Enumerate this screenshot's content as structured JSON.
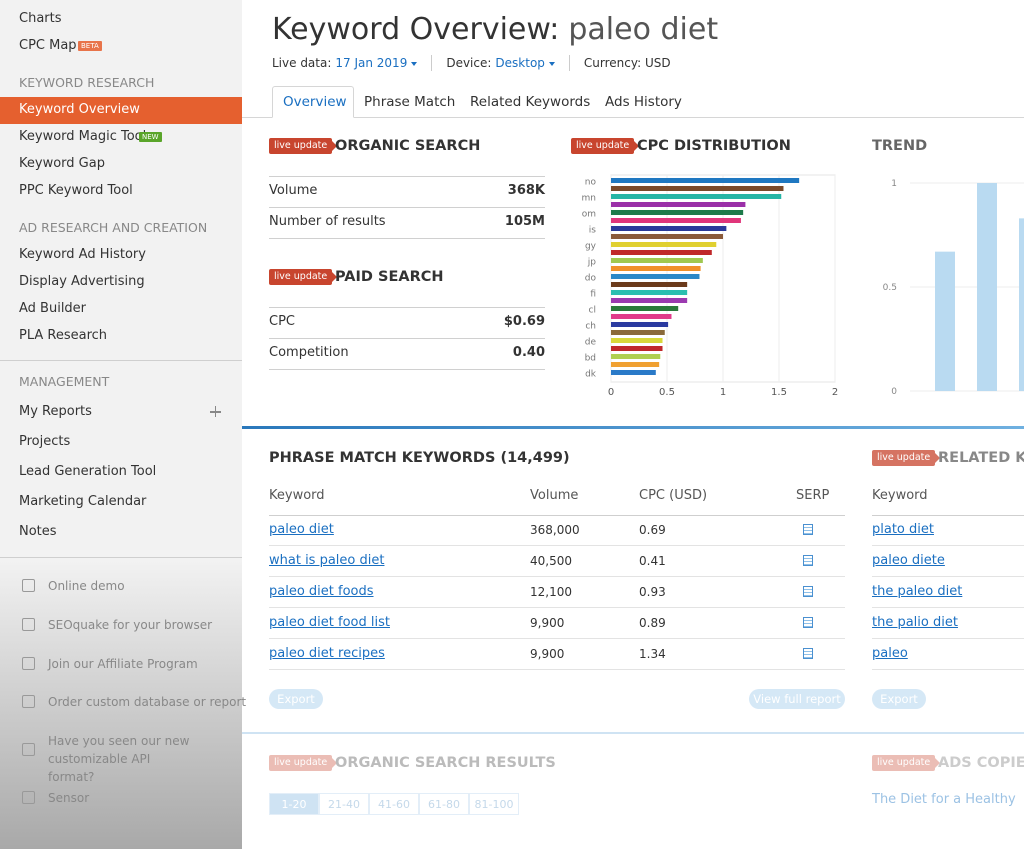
{
  "sidebar": {
    "top_items": [
      {
        "label": "Charts"
      },
      {
        "label": "CPC Map",
        "badge": "BETA"
      }
    ],
    "sections": [
      {
        "title": "KEYWORD RESEARCH",
        "items": [
          {
            "label": "Keyword Overview"
          },
          {
            "label": "Keyword Magic Tool",
            "badge": "NEW"
          },
          {
            "label": "Keyword Gap"
          },
          {
            "label": "PPC Keyword Tool"
          }
        ]
      },
      {
        "title": "AD RESEARCH AND CREATION",
        "items": [
          {
            "label": "Keyword Ad History"
          },
          {
            "label": "Display Advertising"
          },
          {
            "label": "Ad Builder"
          },
          {
            "label": "PLA Research"
          }
        ]
      },
      {
        "title": "MANAGEMENT",
        "items": [
          {
            "label": "My Reports"
          },
          {
            "label": "Projects"
          },
          {
            "label": "Lead Generation Tool"
          },
          {
            "label": "Marketing Calendar"
          },
          {
            "label": "Notes"
          }
        ]
      }
    ],
    "footer_links": [
      "Online demo",
      "SEOquake for your browser",
      "Join our Affiliate Program",
      "Order custom database or report",
      "Have you seen our new customizable API format?",
      "Sensor"
    ]
  },
  "header": {
    "title": "Keyword Overview:",
    "keyword": "paleo diet",
    "live_data_label": "Live data:",
    "date": "17 Jan 2019",
    "device_label": "Device:",
    "device": "Desktop",
    "currency": "Currency: USD"
  },
  "tabs": [
    "Overview",
    "Phrase Match",
    "Related Keywords",
    "Ads History"
  ],
  "badge": "live update",
  "organic_search": {
    "title": "ORGANIC SEARCH",
    "rows": [
      [
        "Volume",
        "368K"
      ],
      [
        "Number of results",
        "105M"
      ]
    ]
  },
  "paid_search": {
    "title": "PAID SEARCH",
    "rows": [
      [
        "CPC",
        "$0.69"
      ],
      [
        "Competition",
        "0.40"
      ]
    ]
  },
  "chart_data": [
    {
      "type": "hbar",
      "title": "CPC DISTRIBUTION",
      "categories": [
        "no",
        null,
        "mn",
        null,
        "om",
        null,
        "is",
        null,
        "gy",
        null,
        "jp",
        null,
        "do",
        null,
        "fi",
        null,
        "cl",
        null,
        "ch",
        null,
        "de",
        null,
        "bd",
        null,
        "dk"
      ],
      "values": [
        1.68,
        1.54,
        1.52,
        1.2,
        1.18,
        1.16,
        1.03,
        1.0,
        0.94,
        0.9,
        0.82,
        0.8,
        0.79,
        0.68,
        0.68,
        0.68,
        0.6,
        0.54,
        0.51,
        0.48,
        0.46,
        0.46,
        0.44,
        0.43,
        0.4
      ],
      "colors": [
        "#1f78c1",
        "#7a4a2a",
        "#26b5a5",
        "#9b2fa8",
        "#1d7a4a",
        "#e0357a",
        "#2a3a9a",
        "#8a5a3a",
        "#e0d030",
        "#c0282a",
        "#a0c850",
        "#f0902a",
        "#2a88c8",
        "#6b3a1a",
        "#2abfb0",
        "#9b3ab0",
        "#2a7a3a",
        "#e03a8a",
        "#2a3aa0",
        "#8a6a3a",
        "#d8d83a",
        "#c0282a",
        "#b0d050",
        "#f0a030",
        "#2a7ac8"
      ],
      "xlim": [
        0,
        2
      ],
      "xticks": [
        0,
        0.5,
        1,
        1.5,
        2
      ],
      "grid": true
    },
    {
      "type": "bar",
      "title": "TREND",
      "categories": [
        null,
        null,
        null
      ],
      "values": [
        0.67,
        1,
        0.83
      ],
      "color": "#b9daf1",
      "ylim": [
        0,
        1
      ],
      "yticks": [
        0,
        0.5,
        1
      ],
      "grid": true
    }
  ],
  "phrase_match": {
    "title": "PHRASE MATCH KEYWORDS (14,499)",
    "columns": [
      "Keyword",
      "Volume",
      "CPC (USD)",
      "SERP"
    ],
    "rows": [
      [
        "paleo diet",
        "368,000",
        "0.69"
      ],
      [
        "what is paleo diet",
        "40,500",
        "0.41"
      ],
      [
        "paleo diet foods",
        "12,100",
        "0.93"
      ],
      [
        "paleo diet food list",
        "9,900",
        "0.89"
      ],
      [
        "paleo diet recipes",
        "9,900",
        "1.34"
      ]
    ],
    "export": "Export",
    "full_report": "View full report"
  },
  "related_keywords": {
    "title": "RELATED KEYWORDS",
    "column": "Keyword",
    "rows": [
      "plato diet",
      "paleo diete",
      "the paleo diet",
      "the palio diet",
      "paleo"
    ],
    "export": "Export"
  },
  "organic_results": {
    "title": "ORGANIC SEARCH RESULTS",
    "pages": [
      "1-20",
      "21-40",
      "41-60",
      "61-80",
      "81-100"
    ]
  },
  "ads_copies": {
    "title": "ADS COPIES",
    "snippet": "The Diet for a Healthy"
  }
}
